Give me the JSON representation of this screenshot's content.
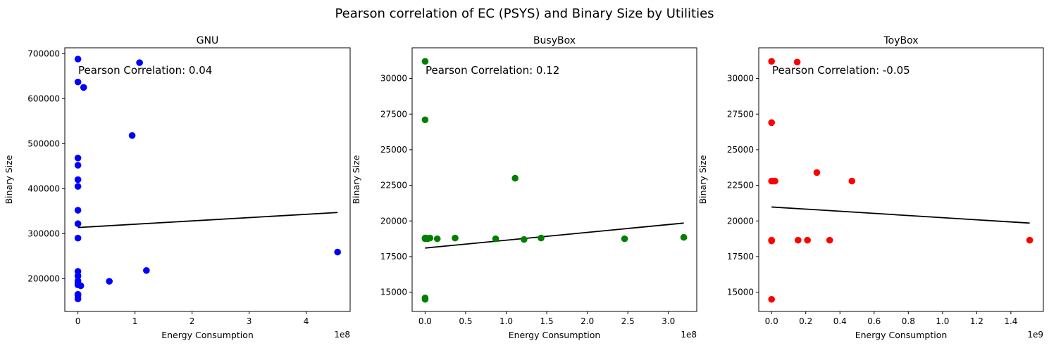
{
  "figure": {
    "title": "Pearson correlation of EC (PSYS) and Binary Size by Utilities"
  },
  "chart_data": [
    {
      "type": "scatter",
      "title": "GNU",
      "xlabel": "Energy Consumption",
      "ylabel": "Binary Size",
      "x_offset_label": "1e8",
      "xlim": [
        -0.23,
        4.77
      ],
      "ylim": [
        127000,
        713000
      ],
      "xticks": [
        0,
        1,
        2,
        3,
        4
      ],
      "xtick_labels": [
        "0",
        "1",
        "2",
        "3",
        "4"
      ],
      "yticks": [
        200000,
        300000,
        400000,
        500000,
        600000,
        700000
      ],
      "ytick_labels": [
        "200000",
        "300000",
        "400000",
        "500000",
        "600000",
        "700000"
      ],
      "marker_color": "#0000ff",
      "line_color": "#000000",
      "annotation": "Pearson Correlation: 0.04",
      "series": [
        {
          "x": [
            0.0,
            0.0,
            0.0,
            0.0,
            0.0,
            0.0,
            0.0,
            0.0,
            0.0,
            0.0,
            0.0,
            0.0,
            0.0,
            0.0,
            0.0,
            0.0,
            0.0,
            0.05,
            0.1,
            0.55,
            0.95,
            1.08,
            1.2,
            4.55
          ],
          "y": [
            688000,
            637000,
            468000,
            452000,
            420000,
            405000,
            352000,
            322000,
            290000,
            216000,
            206000,
            195000,
            190000,
            186000,
            165000,
            163000,
            155000,
            184000,
            625000,
            194000,
            518000,
            680000,
            218000,
            259000
          ]
        }
      ],
      "fit_line": {
        "x": [
          0.0,
          4.55
        ],
        "y": [
          313500,
          347000
        ]
      }
    },
    {
      "type": "scatter",
      "title": "BusyBox",
      "xlabel": "Energy Consumption",
      "ylabel": "Binary Size",
      "x_offset_label": "1e8",
      "xlim": [
        -0.16,
        3.35
      ],
      "ylim": [
        13650,
        32150
      ],
      "xticks": [
        0,
        0.5,
        1.0,
        1.5,
        2.0,
        2.5,
        3.0
      ],
      "xtick_labels": [
        "0.0",
        "0.5",
        "1.0",
        "1.5",
        "2.0",
        "2.5",
        "3.0"
      ],
      "yticks": [
        15000,
        17500,
        20000,
        22500,
        25000,
        27500,
        30000
      ],
      "ytick_labels": [
        "15000",
        "17500",
        "20000",
        "22500",
        "25000",
        "27500",
        "30000"
      ],
      "marker_color": "#008000",
      "line_color": "#000000",
      "annotation": "Pearson Correlation: 0.12",
      "series": [
        {
          "x": [
            0.0,
            0.0,
            0.0,
            0.0,
            0.0,
            0.0,
            0.01,
            0.03,
            0.06,
            0.15,
            0.37,
            0.87,
            1.11,
            1.22,
            1.43,
            2.46,
            3.19
          ],
          "y": [
            31200,
            27100,
            18800,
            18750,
            14600,
            14500,
            18800,
            18750,
            18800,
            18750,
            18800,
            18750,
            23000,
            18700,
            18800,
            18750,
            18850
          ]
        }
      ],
      "fit_line": {
        "x": [
          0.0,
          3.19
        ],
        "y": [
          18100,
          19850
        ]
      }
    },
    {
      "type": "scatter",
      "title": "ToyBox",
      "xlabel": "Energy Consumption",
      "ylabel": "Binary Size",
      "x_offset_label": "1e9",
      "xlim": [
        -0.075,
        1.59
      ],
      "ylim": [
        13650,
        32150
      ],
      "xticks": [
        0,
        0.2,
        0.4,
        0.6,
        0.8,
        1.0,
        1.2,
        1.4
      ],
      "xtick_labels": [
        "0.0",
        "0.2",
        "0.4",
        "0.6",
        "0.8",
        "1.0",
        "1.2",
        "1.4"
      ],
      "yticks": [
        15000,
        17500,
        20000,
        22500,
        25000,
        27500,
        30000
      ],
      "ytick_labels": [
        "15000",
        "17500",
        "20000",
        "22500",
        "25000",
        "27500",
        "30000"
      ],
      "marker_color": "#ff0000",
      "line_color": "#000000",
      "annotation": "Pearson Correlation: -0.05",
      "series": [
        {
          "x": [
            0.0,
            0.0,
            0.0,
            0.0,
            0.0,
            0.0,
            0.01,
            0.02,
            0.15,
            0.155,
            0.21,
            0.265,
            0.34,
            0.47,
            1.51
          ],
          "y": [
            31200,
            26900,
            22800,
            18650,
            18600,
            14500,
            22800,
            22800,
            31150,
            18650,
            18650,
            23400,
            18650,
            22800,
            18650
          ]
        }
      ],
      "fit_line": {
        "x": [
          0.0,
          1.51
        ],
        "y": [
          20980,
          19850
        ]
      }
    }
  ]
}
